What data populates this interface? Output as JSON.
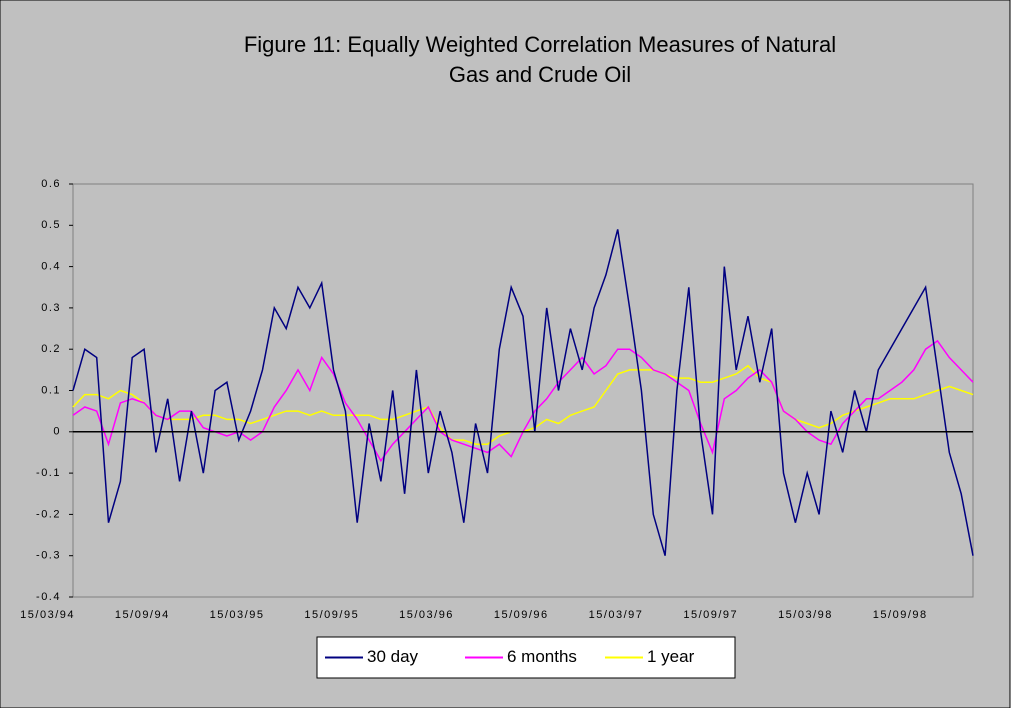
{
  "chart_data": {
    "type": "line",
    "title": "Figure 11: Equally Weighted Correlation Measures of Natural Gas and Crude Oil",
    "categories": [
      "15/03/94",
      null,
      null,
      null,
      null,
      null,
      null,
      null,
      "15/09/94",
      null,
      null,
      null,
      null,
      null,
      null,
      null,
      "15/03/95",
      null,
      null,
      null,
      null,
      null,
      null,
      null,
      "15/09/95",
      null,
      null,
      null,
      null,
      null,
      null,
      null,
      "15/03/96",
      null,
      null,
      null,
      null,
      null,
      null,
      null,
      "15/09/96",
      null,
      null,
      null,
      null,
      null,
      null,
      null,
      "15/03/97",
      null,
      null,
      null,
      null,
      null,
      null,
      null,
      "15/09/97",
      null,
      null,
      null,
      null,
      null,
      null,
      null,
      "15/03/98",
      null,
      null,
      null,
      null,
      null,
      null,
      null,
      "15/09/98",
      null,
      null,
      null,
      null
    ],
    "series": [
      {
        "name": "30 day",
        "color": "#000080",
        "values": [
          0.1,
          0.2,
          0.18,
          -0.22,
          -0.12,
          0.18,
          0.2,
          -0.05,
          0.08,
          -0.12,
          0.05,
          -0.1,
          0.1,
          0.12,
          -0.02,
          0.05,
          0.15,
          0.3,
          0.25,
          0.35,
          0.3,
          0.36,
          0.15,
          0.05,
          -0.22,
          0.02,
          -0.12,
          0.1,
          -0.15,
          0.15,
          -0.1,
          0.05,
          -0.05,
          -0.22,
          0.02,
          -0.1,
          0.2,
          0.35,
          0.28,
          0.0,
          0.3,
          0.1,
          0.25,
          0.15,
          0.3,
          0.38,
          0.49,
          0.3,
          0.1,
          -0.2,
          -0.3,
          0.1,
          0.35,
          0.0,
          -0.2,
          0.4,
          0.15,
          0.28,
          0.12,
          0.25,
          -0.1,
          -0.22,
          -0.1,
          -0.2,
          0.05,
          -0.05,
          0.1,
          0.0,
          0.15,
          0.2,
          0.25,
          0.3,
          0.35,
          0.15,
          -0.05,
          -0.15,
          -0.3
        ]
      },
      {
        "name": "6 months",
        "color": "#ff00ff",
        "values": [
          0.04,
          0.06,
          0.05,
          -0.03,
          0.07,
          0.08,
          0.07,
          0.04,
          0.03,
          0.05,
          0.05,
          0.01,
          0.0,
          -0.01,
          0.0,
          -0.02,
          0.0,
          0.06,
          0.1,
          0.15,
          0.1,
          0.18,
          0.14,
          0.07,
          0.03,
          -0.02,
          -0.07,
          -0.03,
          0.0,
          0.03,
          0.06,
          0.0,
          -0.02,
          -0.03,
          -0.04,
          -0.05,
          -0.03,
          -0.06,
          0.0,
          0.05,
          0.08,
          0.12,
          0.15,
          0.18,
          0.14,
          0.16,
          0.2,
          0.2,
          0.18,
          0.15,
          0.14,
          0.12,
          0.1,
          0.02,
          -0.05,
          0.08,
          0.1,
          0.13,
          0.15,
          0.12,
          0.05,
          0.03,
          0.0,
          -0.02,
          -0.03,
          0.02,
          0.05,
          0.08,
          0.08,
          0.1,
          0.12,
          0.15,
          0.2,
          0.22,
          0.18,
          0.15,
          0.12
        ]
      },
      {
        "name": "1 year",
        "color": "#ffff00",
        "values": [
          0.06,
          0.09,
          0.09,
          0.08,
          0.1,
          0.09,
          0.07,
          0.04,
          0.03,
          0.03,
          0.03,
          0.04,
          0.04,
          0.03,
          0.03,
          0.02,
          0.03,
          0.04,
          0.05,
          0.05,
          0.04,
          0.05,
          0.04,
          0.04,
          0.04,
          0.04,
          0.03,
          0.03,
          0.04,
          0.05,
          0.06,
          0.01,
          -0.02,
          -0.02,
          -0.03,
          -0.03,
          -0.01,
          0.0,
          0.0,
          0.01,
          0.03,
          0.02,
          0.04,
          0.05,
          0.06,
          0.1,
          0.14,
          0.15,
          0.15,
          0.15,
          0.14,
          0.13,
          0.13,
          0.12,
          0.12,
          0.13,
          0.14,
          0.16,
          0.13,
          0.12,
          0.05,
          0.03,
          0.02,
          0.01,
          0.02,
          0.04,
          0.05,
          0.06,
          0.07,
          0.08,
          0.08,
          0.08,
          0.09,
          0.1,
          0.11,
          0.1,
          0.09
        ]
      }
    ],
    "ylim": [
      -0.4,
      0.6
    ],
    "yticks": [
      -0.4,
      -0.3,
      -0.2,
      -0.1,
      0,
      0.1,
      0.2,
      0.3,
      0.4,
      0.5,
      0.6
    ],
    "legend": "bottom"
  }
}
